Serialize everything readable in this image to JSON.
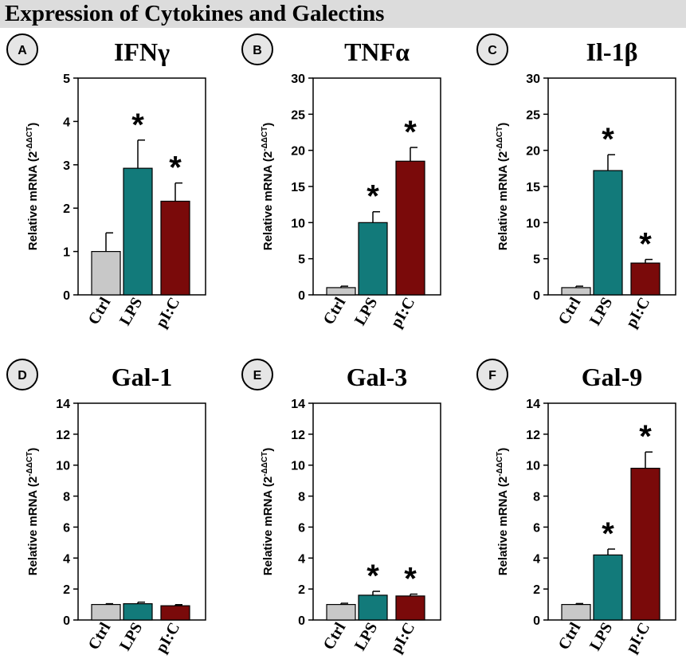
{
  "figure_title": "Expression of Cytokines and Galectins",
  "colors": {
    "ctrl": "#c8c8c8",
    "lps": "#127a7a",
    "pic": "#7a0a0a",
    "panel_letter_bg": "#e6e6e6",
    "title_bg": "#dcdcdc"
  },
  "asterisk": "*",
  "chart_data": [
    {
      "letter": "A",
      "type": "bar",
      "title": "IFNγ",
      "ylabel": "Relative mRNA (2",
      "ylabel_sup": "-ΔΔCT",
      "ylabel_end": ")",
      "categories": [
        "Ctrl",
        "LPS",
        "pI:C"
      ],
      "values": [
        1.0,
        2.92,
        2.16
      ],
      "errors": [
        0.43,
        0.65,
        0.42
      ],
      "significant": [
        false,
        true,
        true
      ],
      "ylim": [
        0,
        5
      ],
      "yticks": [
        "0",
        "1",
        "2",
        "3",
        "4",
        "5"
      ]
    },
    {
      "letter": "B",
      "type": "bar",
      "title": "TNFα",
      "ylabel": "Relative mRNA (2",
      "ylabel_sup": "-ΔΔCT",
      "ylabel_end": ")",
      "categories": [
        "Ctrl",
        "LPS",
        "pI:C"
      ],
      "values": [
        1.0,
        10.0,
        18.5
      ],
      "errors": [
        0.2,
        1.5,
        1.9
      ],
      "significant": [
        false,
        true,
        true
      ],
      "ylim": [
        0,
        30
      ],
      "yticks": [
        "0",
        "5",
        "10",
        "15",
        "20",
        "25",
        "30"
      ]
    },
    {
      "letter": "C",
      "type": "bar",
      "title": "Il-1β",
      "ylabel": "Relative mRNA (2",
      "ylabel_sup": "-ΔΔCT",
      "ylabel_end": ")",
      "categories": [
        "Ctrl",
        "LPS",
        "pI:C"
      ],
      "values": [
        1.0,
        17.2,
        4.4
      ],
      "errors": [
        0.2,
        2.2,
        0.5
      ],
      "significant": [
        false,
        true,
        true
      ],
      "ylim": [
        0,
        30
      ],
      "yticks": [
        "0",
        "5",
        "10",
        "15",
        "20",
        "25",
        "30"
      ]
    },
    {
      "letter": "D",
      "type": "bar",
      "title": "Gal-1",
      "ylabel": "Relative mRNA (2",
      "ylabel_sup": "-ΔΔCT",
      "ylabel_end": ")",
      "categories": [
        "Ctrl",
        "LPS",
        "pI:C"
      ],
      "values": [
        1.0,
        1.05,
        0.92
      ],
      "errors": [
        0.05,
        0.1,
        0.07
      ],
      "significant": [
        false,
        false,
        false
      ],
      "ylim": [
        0,
        14
      ],
      "yticks": [
        "0",
        "2",
        "4",
        "6",
        "8",
        "10",
        "12",
        "14"
      ]
    },
    {
      "letter": "E",
      "type": "bar",
      "title": "Gal-3",
      "ylabel": "Relative mRNA (2",
      "ylabel_sup": "-ΔΔCT",
      "ylabel_end": ")",
      "categories": [
        "Ctrl",
        "LPS",
        "pI:C"
      ],
      "values": [
        1.0,
        1.6,
        1.55
      ],
      "errors": [
        0.08,
        0.25,
        0.12
      ],
      "significant": [
        false,
        true,
        true
      ],
      "ylim": [
        0,
        14
      ],
      "yticks": [
        "0",
        "2",
        "4",
        "6",
        "8",
        "10",
        "12",
        "14"
      ]
    },
    {
      "letter": "F",
      "type": "bar",
      "title": "Gal-9",
      "ylabel": "Relative mRNA (2",
      "ylabel_sup": "-ΔΔCT",
      "ylabel_end": ")",
      "categories": [
        "Ctrl",
        "LPS",
        "pI:C"
      ],
      "values": [
        1.0,
        4.2,
        9.8
      ],
      "errors": [
        0.06,
        0.38,
        1.05
      ],
      "significant": [
        false,
        true,
        true
      ],
      "ylim": [
        0,
        14
      ],
      "yticks": [
        "0",
        "2",
        "4",
        "6",
        "8",
        "10",
        "12",
        "14"
      ]
    }
  ]
}
